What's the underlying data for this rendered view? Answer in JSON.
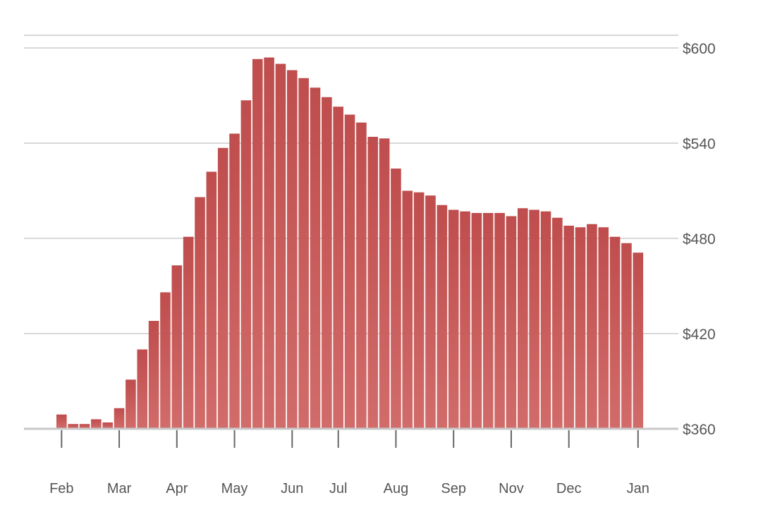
{
  "chart_data": {
    "type": "bar",
    "title": "",
    "xlabel": "",
    "ylabel": "",
    "y_tick_labels": [
      "$360",
      "$420",
      "$480",
      "$540",
      "$600"
    ],
    "y_ticks": [
      360,
      420,
      480,
      540,
      600
    ],
    "ylim": [
      360,
      608
    ],
    "grid": true,
    "y_axis_side": "right",
    "x_tick_labels": [
      "Feb",
      "Mar",
      "Apr",
      "May",
      "Jun",
      "Jul",
      "Aug",
      "Sep",
      "Nov",
      "Dec",
      "Jan"
    ],
    "x_tick_positions": [
      0.5,
      5.5,
      10.5,
      15.5,
      20.5,
      24.5,
      29.5,
      34.5,
      39.5,
      44.5,
      50.5
    ],
    "bar_color": "#c0504f",
    "values": [
      369,
      363,
      363,
      366,
      364,
      373,
      391,
      410,
      428,
      446,
      463,
      481,
      506,
      522,
      537,
      546,
      567,
      593,
      594,
      590,
      586,
      581,
      575,
      569,
      563,
      558,
      553,
      544,
      543,
      524,
      510,
      509,
      507,
      501,
      498,
      497,
      496,
      496,
      496,
      494,
      499,
      498,
      497,
      493,
      488,
      487,
      489,
      487,
      481,
      477,
      471
    ]
  }
}
